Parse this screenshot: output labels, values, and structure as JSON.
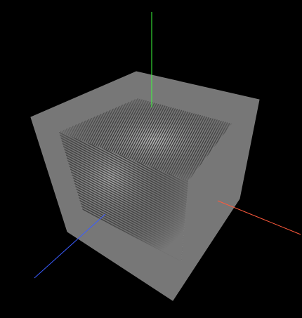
{
  "viewport": {
    "background": "#000000"
  },
  "cube": {
    "fill": "#777777",
    "edge": "#6f6f6f",
    "moire_stripe": "#ffffff",
    "moire_dark": "#111111"
  },
  "axes": {
    "x_color": "#ff5a3c",
    "y_color": "#3cff3c",
    "z_color": "#3a5cff"
  }
}
